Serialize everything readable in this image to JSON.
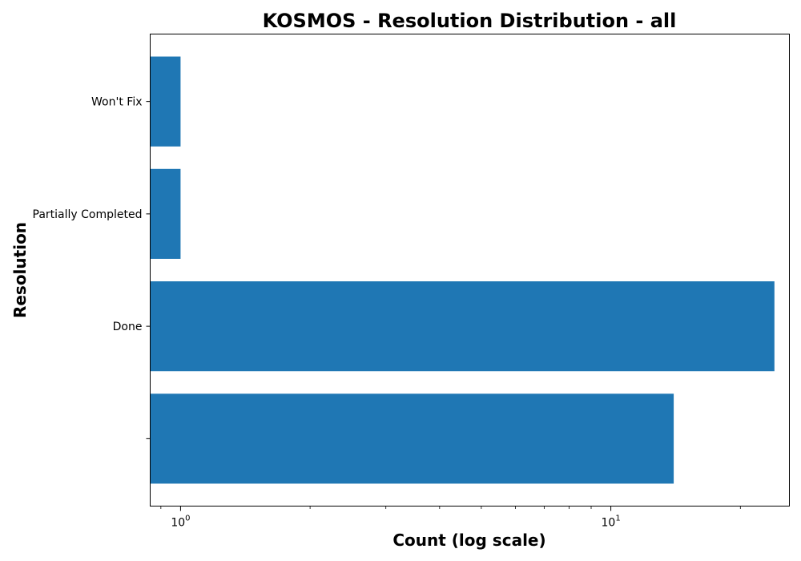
{
  "chart_data": {
    "type": "bar",
    "orientation": "horizontal",
    "title": "KOSMOS - Resolution Distribution - all",
    "xlabel": "Count (log scale)",
    "ylabel": "Resolution",
    "x_scale": "log",
    "xlim": [
      0.85,
      26
    ],
    "categories": [
      "",
      "Done",
      "Partially Completed",
      "Won't Fix"
    ],
    "values": [
      14,
      24,
      1,
      1
    ],
    "bar_color": "#1f77b4",
    "x_major_ticks": [
      {
        "value": 1,
        "base": "10",
        "exp": "0"
      },
      {
        "value": 10,
        "base": "10",
        "exp": "1"
      }
    ],
    "grid": false
  }
}
